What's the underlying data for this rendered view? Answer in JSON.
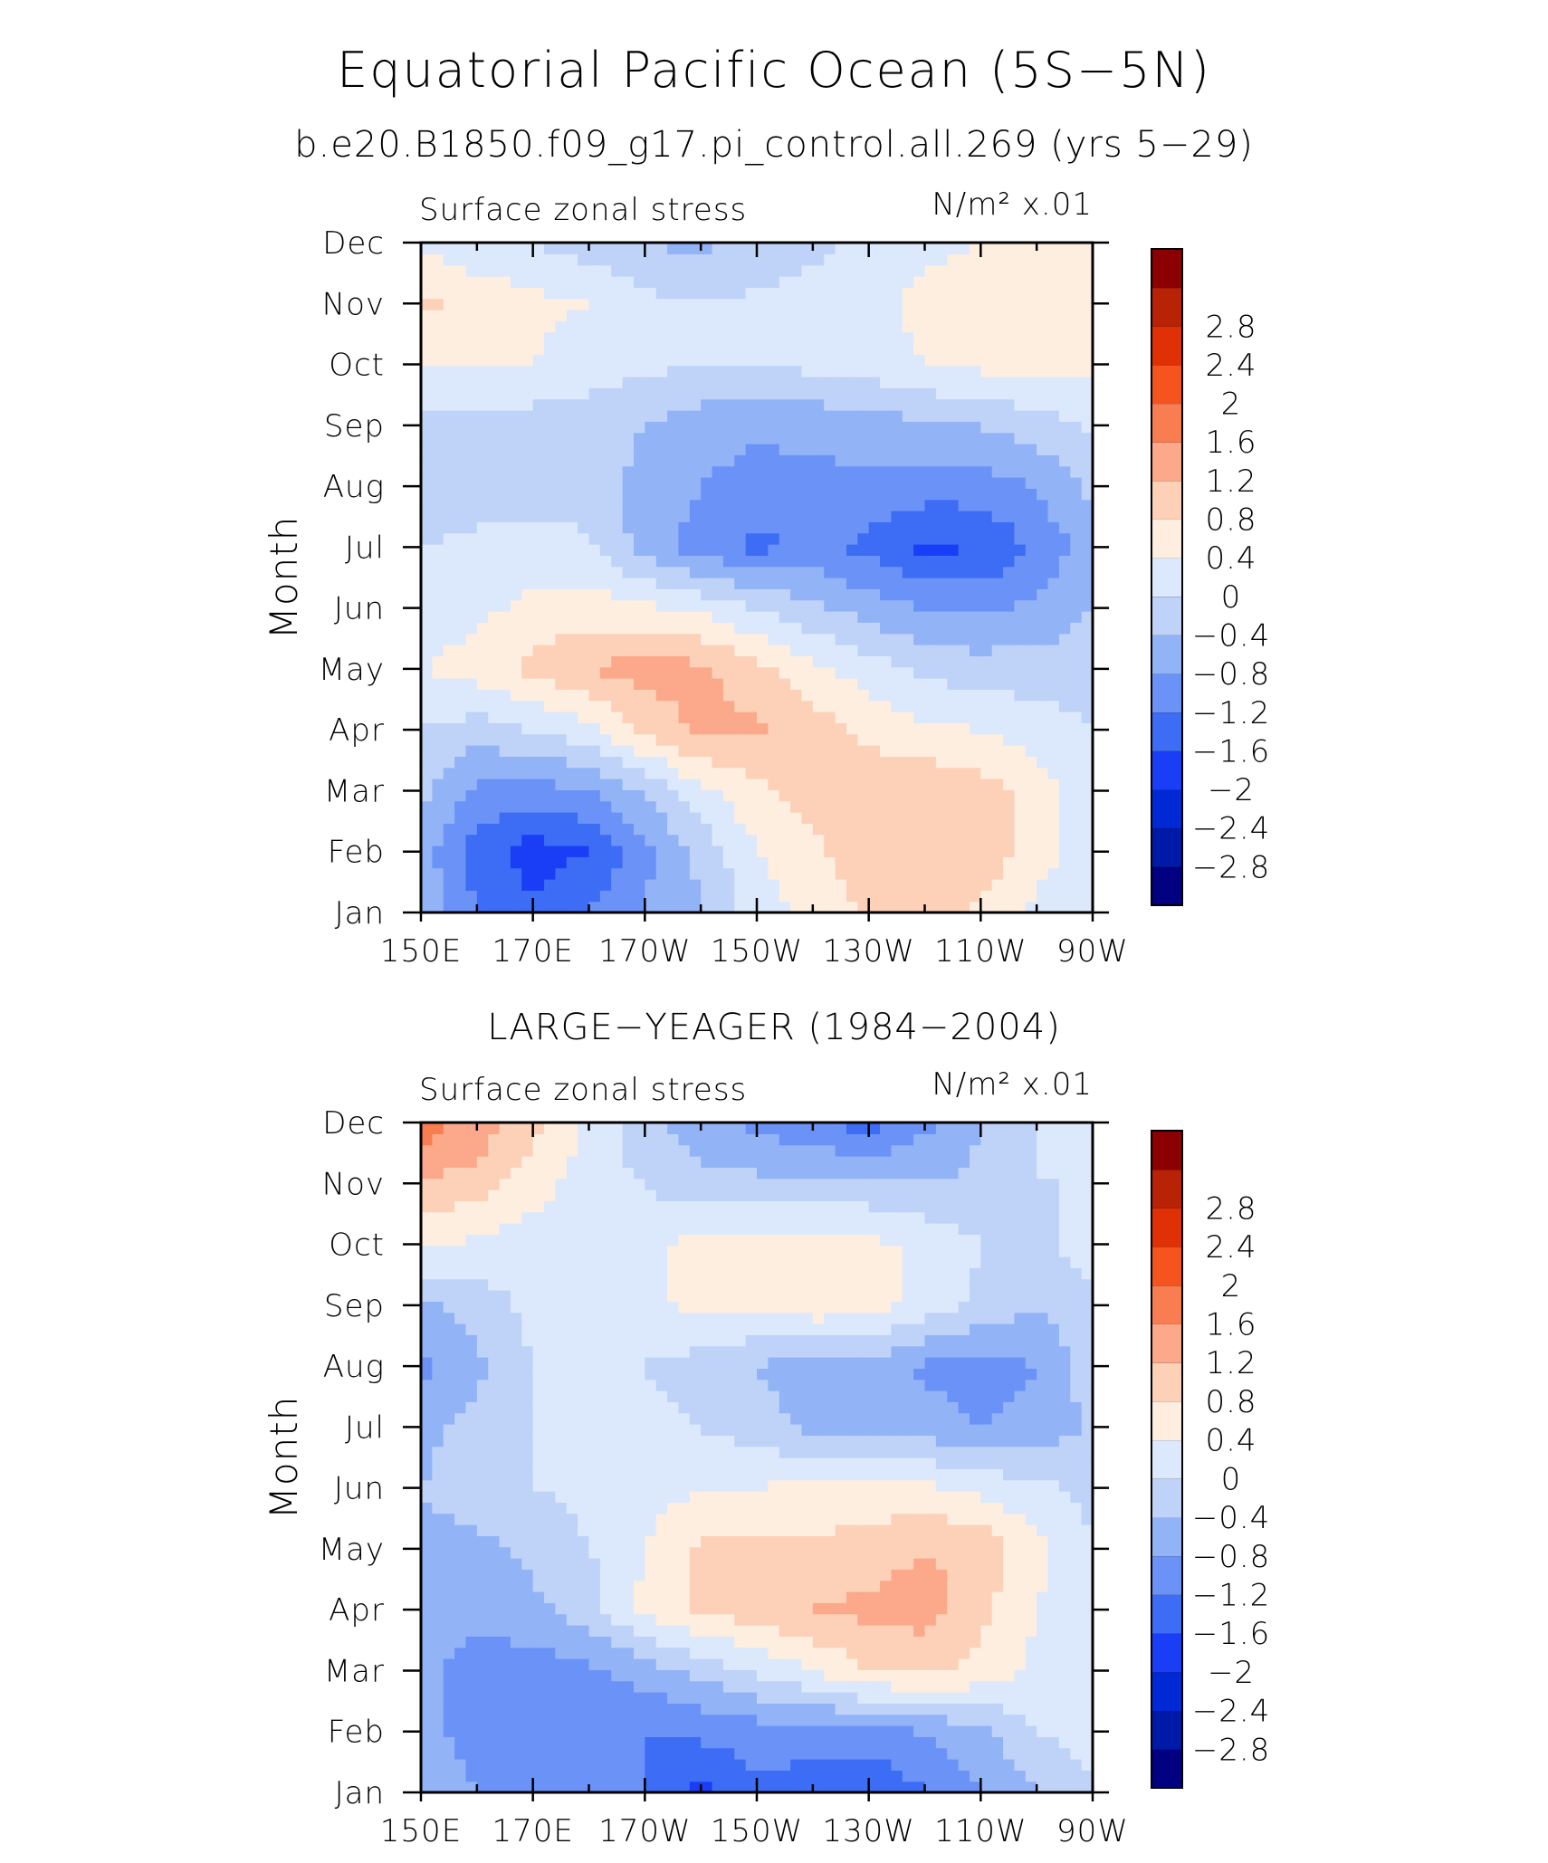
{
  "figure": {
    "title": "Equatorial Pacific Ocean (5S−5N)"
  },
  "colorscale": {
    "levels": [
      -2.8,
      -2.4,
      -2,
      -1.6,
      -1.2,
      -0.8,
      -0.4,
      0,
      0.4,
      0.8,
      1.2,
      1.6,
      2,
      2.4,
      2.8
    ],
    "labels": [
      "−2.8",
      "−2.4",
      "−2",
      "−1.6",
      "−1.2",
      "−0.8",
      "−0.4",
      "0",
      "0.4",
      "0.8",
      "1.2",
      "1.6",
      "2",
      "2.4",
      "2.8"
    ],
    "colors": [
      "#000080",
      "#001aa8",
      "#0029d6",
      "#1a3ef5",
      "#3d6cf5",
      "#6b93f7",
      "#93b3f7",
      "#bfd3f8",
      "#dce8fc",
      "#fdeee0",
      "#fdd0b8",
      "#fba98a",
      "#f87e52",
      "#f5541f",
      "#e03005",
      "#b82205",
      "#8b0000"
    ]
  },
  "chart_data": [
    {
      "type": "heatmap",
      "title": "b.e20.B1850.f09_g17.pi_control.all.269 (yrs 5−29)",
      "left_label": "Surface zonal stress",
      "right_label": "N/m² x.01",
      "ylabel": "Month",
      "x": [
        "150E",
        "160E",
        "170E",
        "180",
        "170W",
        "160W",
        "150W",
        "140W",
        "130W",
        "120W",
        "110W",
        "100W",
        "90W"
      ],
      "x_tick_labels": [
        "150E",
        "170E",
        "170W",
        "150W",
        "130W",
        "110W",
        "90W"
      ],
      "y_tick_labels": [
        "Jan",
        "Feb",
        "Mar",
        "Apr",
        "May",
        "Jun",
        "Jul",
        "Aug",
        "Sep",
        "Oct",
        "Nov",
        "Dec"
      ],
      "z": [
        [
          -0.4,
          -1.2,
          -1.5,
          -1.2,
          -0.8,
          -0.4,
          0.2,
          0.5,
          0.9,
          1.0,
          0.7,
          0.3,
          0.0
        ],
        [
          -0.6,
          -1.4,
          -1.8,
          -1.6,
          -0.9,
          -0.3,
          0.4,
          0.7,
          1.1,
          1.2,
          1.1,
          0.6,
          0.1
        ],
        [
          -0.3,
          -0.9,
          -1.0,
          -0.8,
          -0.4,
          0.3,
          0.7,
          1.0,
          1.1,
          1.1,
          1.0,
          0.6,
          0.1
        ],
        [
          0.0,
          -0.2,
          0.0,
          0.3,
          0.9,
          1.3,
          1.3,
          1.0,
          0.7,
          0.5,
          0.4,
          0.2,
          0.0
        ],
        [
          0.4,
          0.6,
          0.9,
          1.2,
          1.4,
          1.3,
          0.9,
          0.5,
          0.2,
          -0.1,
          -0.2,
          -0.2,
          -0.2
        ],
        [
          0.1,
          0.3,
          0.5,
          0.6,
          0.5,
          0.3,
          0.0,
          -0.3,
          -0.6,
          -0.8,
          -0.9,
          -0.7,
          -0.4
        ],
        [
          0.0,
          0.1,
          0.2,
          0.1,
          -0.6,
          -1.0,
          -1.3,
          -1.1,
          -1.3,
          -1.7,
          -1.6,
          -1.1,
          -0.6
        ],
        [
          -0.4,
          -0.2,
          -0.2,
          -0.3,
          -0.5,
          -0.8,
          -1.0,
          -0.9,
          -0.9,
          -1.0,
          -1.0,
          -0.8,
          -0.3
        ],
        [
          -0.2,
          -0.2,
          -0.2,
          -0.2,
          -0.4,
          -0.6,
          -0.7,
          -0.7,
          -0.6,
          -0.5,
          -0.4,
          -0.2,
          0.1
        ],
        [
          0.4,
          0.4,
          0.4,
          0.2,
          0.1,
          0.0,
          0.0,
          0.1,
          0.2,
          0.4,
          0.5,
          0.6,
          0.5
        ],
        [
          0.9,
          0.7,
          0.5,
          0.4,
          0.1,
          0.0,
          0.1,
          0.2,
          0.3,
          0.5,
          0.6,
          0.6,
          0.5
        ],
        [
          0.3,
          0.1,
          0.0,
          -0.2,
          -0.4,
          -0.5,
          -0.3,
          -0.1,
          0.1,
          0.3,
          0.4,
          0.5,
          0.4
        ]
      ]
    },
    {
      "type": "heatmap",
      "title": "LARGE−YEAGER (1984−2004)",
      "left_label": "Surface zonal stress",
      "right_label": "N/m² x.01",
      "ylabel": "Month",
      "x": [
        "150E",
        "160E",
        "170E",
        "180",
        "170W",
        "160W",
        "150W",
        "140W",
        "130W",
        "120W",
        "110W",
        "100W",
        "90W"
      ],
      "x_tick_labels": [
        "150E",
        "170E",
        "170W",
        "150W",
        "130W",
        "110W",
        "90W"
      ],
      "y_tick_labels": [
        "Jan",
        "Feb",
        "Mar",
        "Apr",
        "May",
        "Jun",
        "Jul",
        "Aug",
        "Sep",
        "Oct",
        "Nov",
        "Dec"
      ],
      "z": [
        [
          -0.5,
          -0.8,
          -0.9,
          -1.0,
          -1.2,
          -1.7,
          -1.3,
          -1.4,
          -1.6,
          -1.2,
          -0.8,
          -0.4,
          0.0
        ],
        [
          -0.6,
          -1.0,
          -1.2,
          -1.1,
          -1.2,
          -1.1,
          -1.0,
          -1.0,
          -0.9,
          -0.8,
          -0.5,
          0.0,
          0.1
        ],
        [
          -0.7,
          -1.0,
          -1.0,
          -0.9,
          -0.6,
          -0.3,
          0.1,
          0.4,
          0.8,
          0.9,
          0.7,
          0.3,
          0.1
        ],
        [
          -0.5,
          -0.7,
          -0.5,
          -0.2,
          0.5,
          0.9,
          1.0,
          1.2,
          1.3,
          1.4,
          0.9,
          0.4,
          0.1
        ],
        [
          -0.5,
          -0.5,
          -0.3,
          0.0,
          0.4,
          0.9,
          0.9,
          0.9,
          1.0,
          1.2,
          1.1,
          0.5,
          0.0
        ],
        [
          -0.4,
          -0.2,
          0.0,
          0.1,
          0.2,
          0.4,
          0.4,
          0.5,
          0.5,
          0.5,
          0.3,
          0.1,
          -0.1
        ],
        [
          -0.5,
          -0.3,
          0.0,
          0.2,
          0.1,
          0.0,
          -0.2,
          -0.5,
          -0.5,
          -0.6,
          -0.8,
          -0.7,
          -0.3
        ],
        [
          -0.9,
          -0.5,
          0.0,
          0.1,
          0.0,
          -0.2,
          -0.4,
          -0.7,
          -0.5,
          -0.9,
          -1.0,
          -0.8,
          -0.2
        ],
        [
          -0.5,
          -0.2,
          0.1,
          0.2,
          0.3,
          0.5,
          0.5,
          0.7,
          0.6,
          0.2,
          -0.1,
          -0.4,
          -0.1
        ],
        [
          0.5,
          0.3,
          0.2,
          0.1,
          0.2,
          0.6,
          0.6,
          0.6,
          0.5,
          0.3,
          0.0,
          -0.2,
          0.3
        ],
        [
          1.2,
          1.0,
          0.6,
          0.2,
          0.0,
          -0.3,
          -0.3,
          -0.3,
          -0.3,
          -0.4,
          -0.3,
          0.0,
          0.0
        ],
        [
          1.8,
          1.5,
          0.9,
          0.3,
          -0.3,
          -0.6,
          -0.9,
          -1.1,
          -1.4,
          -0.9,
          -0.4,
          0.0,
          0.0
        ]
      ]
    }
  ]
}
